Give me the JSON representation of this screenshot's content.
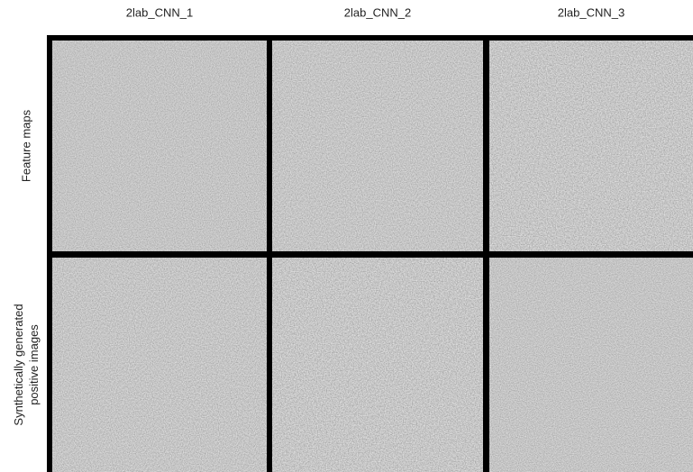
{
  "columns": [
    "2lab_CNN_1",
    "2lab_CNN_2",
    "2lab_CNN_3"
  ],
  "rows": [
    {
      "lines": [
        "Feature maps"
      ]
    },
    {
      "lines": [
        "Synthetically generated",
        "positive images"
      ]
    }
  ]
}
